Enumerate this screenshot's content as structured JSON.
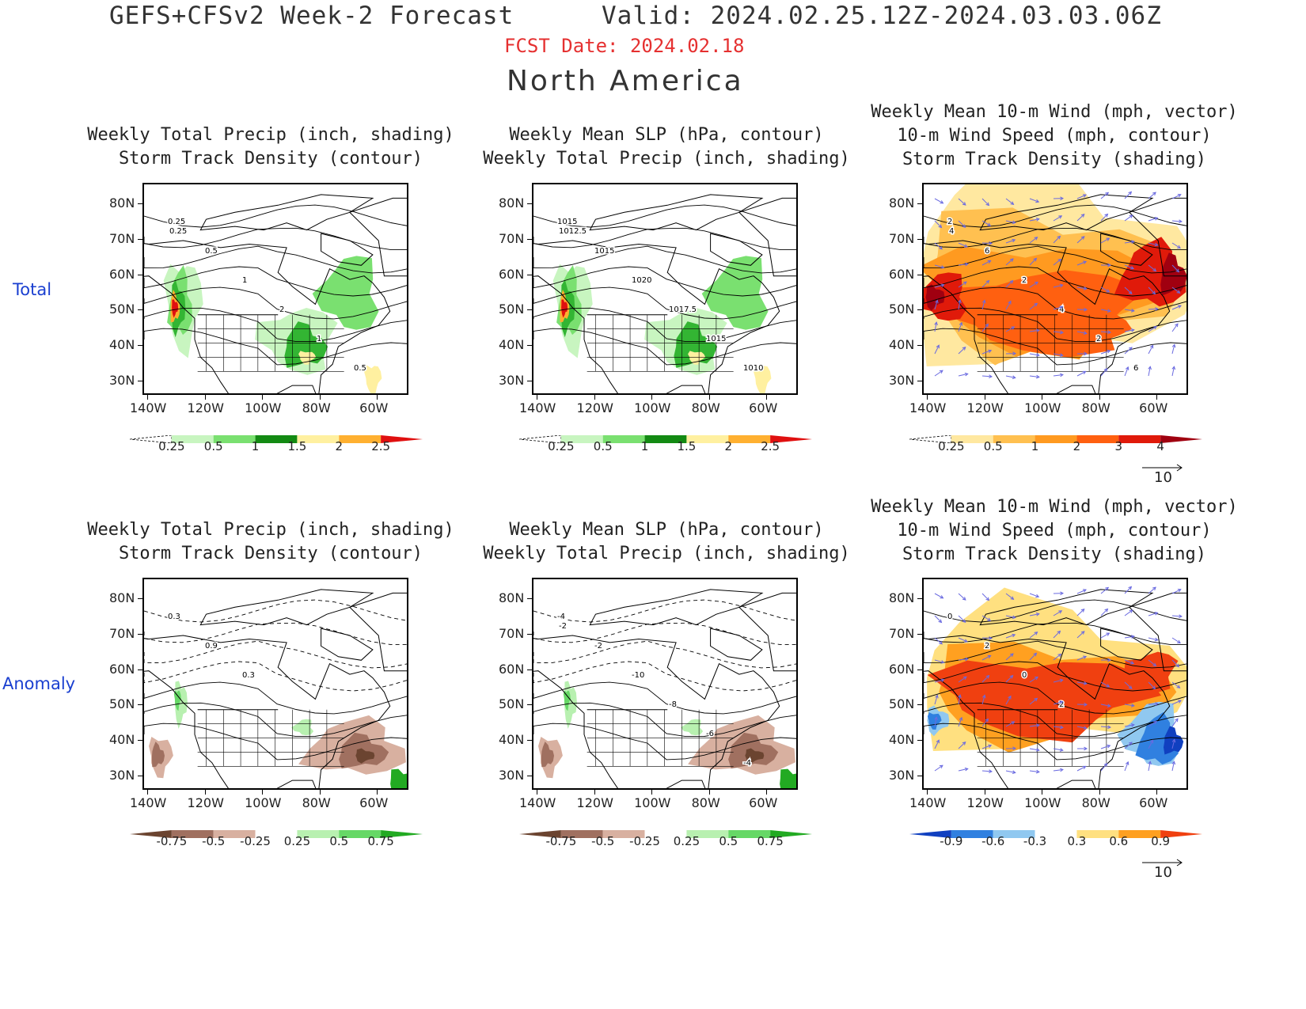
{
  "header": {
    "title": "GEFS+CFSv2 Week-2 Forecast",
    "valid": "Valid: 2024.02.25.12Z-2024.03.03.06Z",
    "fcst_date": "FCST Date: 2024.02.18",
    "region": "North America"
  },
  "row_labels": [
    "Total",
    "Anomaly"
  ],
  "panels": [
    {
      "title": [
        "Weekly Total Precip (inch, shading)",
        "Storm Track Density (contour)"
      ],
      "kind": "precip",
      "colorbar": [
        "0.25",
        "0.5",
        "1",
        "1.5",
        "2",
        "2.5"
      ],
      "contour_labels": [
        "0.25",
        "0.5",
        "1",
        "2",
        "1",
        "0.5",
        "0.25"
      ]
    },
    {
      "title": [
        "Weekly Mean SLP (hPa, contour)",
        "Weekly Total Precip (inch, shading)"
      ],
      "kind": "precip",
      "colorbar": [
        "0.25",
        "0.5",
        "1",
        "1.5",
        "2",
        "2.5"
      ],
      "contour_labels": [
        "1015",
        "1015",
        "1020",
        "1017.5",
        "1015",
        "1010",
        "1012.5"
      ]
    },
    {
      "title": [
        "Weekly Mean 10-m Wind (mph, vector)",
        "10-m Wind Speed (mph, contour)",
        "Storm Track Density (shading)"
      ],
      "kind": "wind",
      "colorbar": [
        "0.25",
        "0.5",
        "1",
        "2",
        "3",
        "4"
      ],
      "contour_labels": [
        "2",
        "6",
        "2",
        "4",
        "2",
        "6",
        "4"
      ],
      "vector_ref": "10"
    },
    {
      "title": [
        "Weekly Total Precip (inch, shading)",
        "Storm Track Density (contour)"
      ],
      "kind": "anom",
      "colorbar": [
        "-0.75",
        "-0.5",
        "-0.25",
        "0.25",
        "0.5",
        "0.75"
      ],
      "contour_labels": [
        "0.3",
        "0.9",
        "0.3"
      ]
    },
    {
      "title": [
        "Weekly Mean SLP (hPa, contour)",
        "Weekly Total Precip (inch, shading)"
      ],
      "kind": "anom",
      "colorbar": [
        "-0.75",
        "-0.5",
        "-0.25",
        "0.25",
        "0.5",
        "0.75"
      ],
      "contour_labels": [
        "-4",
        "-2",
        "-10",
        "-8",
        "-6",
        "-4",
        "-2"
      ]
    },
    {
      "title": [
        "Weekly Mean 10-m Wind (mph, vector)",
        "10-m Wind Speed (mph, contour)",
        "Storm Track Density (shading)"
      ],
      "kind": "windanom",
      "colorbar": [
        "-0.9",
        "-0.6",
        "-0.3",
        "0.3",
        "0.6",
        "0.9"
      ],
      "contour_labels": [
        "0",
        "2",
        "0",
        "2"
      ],
      "vector_ref": "10"
    }
  ],
  "axes": {
    "lat_ticks": [
      "80N",
      "70N",
      "60N",
      "50N",
      "40N",
      "30N"
    ],
    "lon_ticks": [
      "140W",
      "120W",
      "100W",
      "80W",
      "60W"
    ]
  },
  "colors": {
    "precip": [
      "#ffffff",
      "#c8f5c0",
      "#7ae070",
      "#33b533",
      "#138a13",
      "#fff0a0",
      "#ffb030",
      "#f06010",
      "#e01010"
    ],
    "anom": [
      "#6b4430",
      "#a07060",
      "#d8b0a0",
      "#ffffff",
      "#b8f0b0",
      "#66d866",
      "#22aa22"
    ],
    "wind": [
      "#ffffff",
      "#ffe8a0",
      "#ffc050",
      "#ff9a20",
      "#ff6010",
      "#e01a0a",
      "#a00010"
    ],
    "windanom": [
      "#1040c0",
      "#3080e0",
      "#90c8f0",
      "#ffffff",
      "#ffe080",
      "#ffa020",
      "#f04010"
    ],
    "vector": "#6a6ae0"
  }
}
